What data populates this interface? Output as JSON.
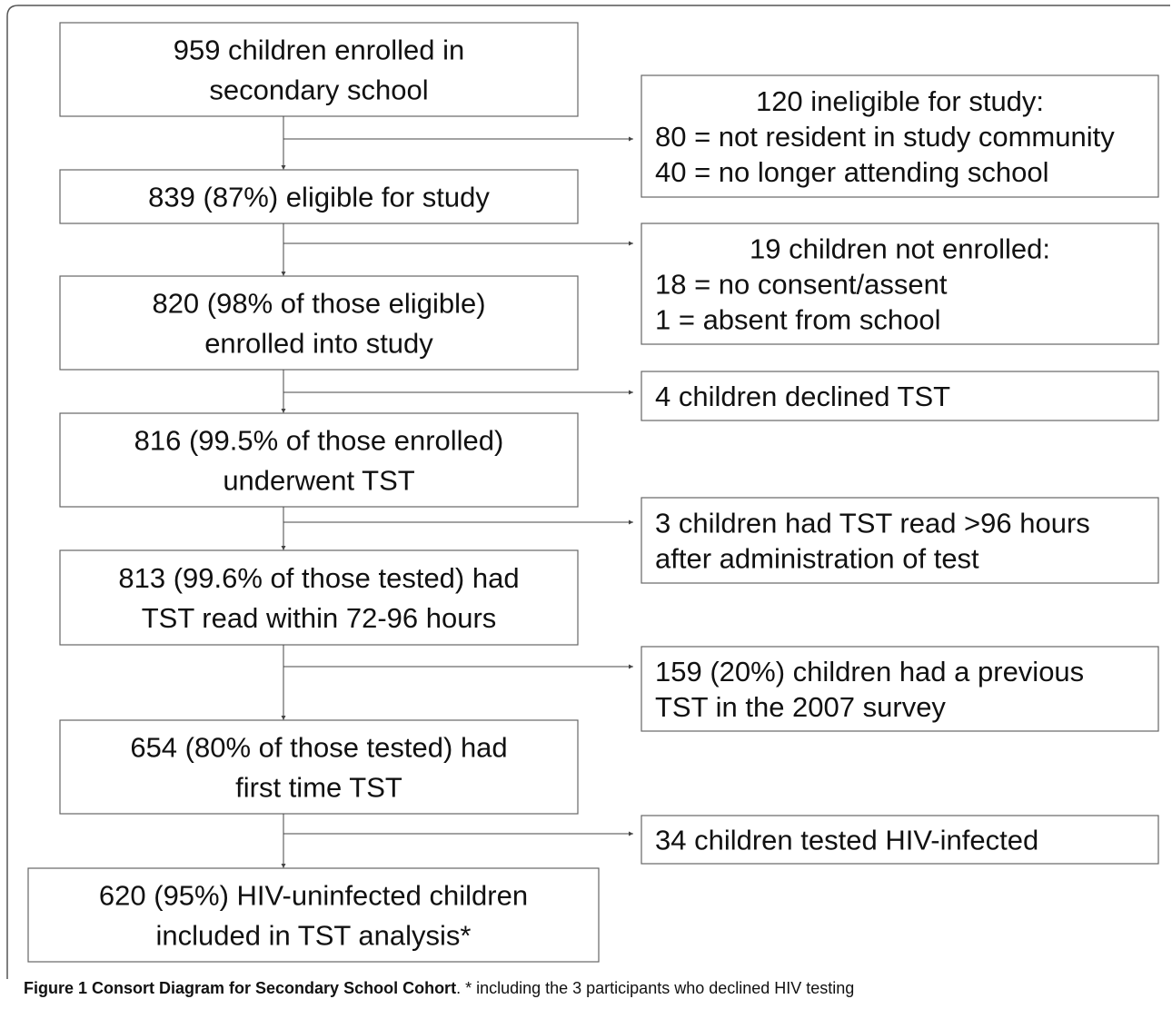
{
  "main_boxes": [
    {
      "lines": [
        "959 children enrolled in",
        "secondary school"
      ]
    },
    {
      "lines": [
        "839 (87%) eligible for study"
      ]
    },
    {
      "lines": [
        "820 (98% of those eligible)",
        "enrolled into study"
      ]
    },
    {
      "lines": [
        "816 (99.5% of those enrolled)",
        "underwent TST"
      ]
    },
    {
      "lines": [
        "813 (99.6% of those tested) had",
        "TST read within 72-96 hours"
      ]
    },
    {
      "lines": [
        "654 (80% of those tested) had",
        "first time TST"
      ]
    },
    {
      "lines": [
        "620 (95%) HIV-uninfected children",
        "included in TST analysis*"
      ]
    }
  ],
  "side_boxes": [
    {
      "lines": [
        "120 ineligible for study:",
        "80 = not resident in study community",
        "40 = no longer attending school"
      ]
    },
    {
      "lines": [
        "19 children not enrolled:",
        "18 = no consent/assent",
        " 1  = absent from school"
      ]
    },
    {
      "lines": [
        "4 children declined TST"
      ]
    },
    {
      "lines": [
        "3 children had TST read >96 hours",
        "after administration of test"
      ]
    },
    {
      "lines": [
        "159 (20%) children had a previous",
        "TST in the 2007 survey"
      ]
    },
    {
      "lines": [
        "34 children tested HIV-infected"
      ]
    }
  ],
  "caption": {
    "label": "Figure 1 Consort Diagram for Secondary School Cohort",
    "text": ". * including the 3 participants who declined HIV testing"
  }
}
